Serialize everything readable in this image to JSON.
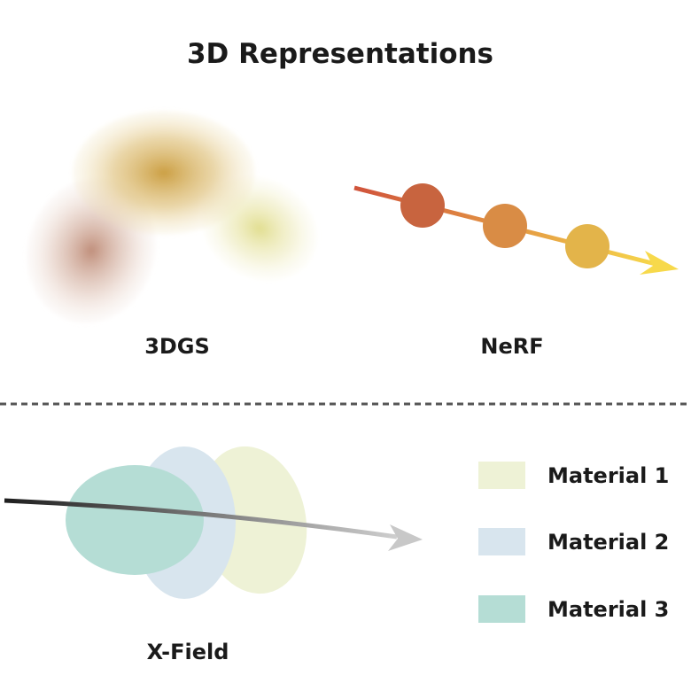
{
  "title": "3D Representations",
  "labels": {
    "gs": "3DGS",
    "nerf": "NeRF",
    "xfield": "X-Field"
  },
  "legend": [
    {
      "label": "Material 1",
      "color": "#eef2d6"
    },
    {
      "label": "Material 2",
      "color": "#d8e5ee"
    },
    {
      "label": "Material 3",
      "color": "#b5ddd5"
    }
  ],
  "colors": {
    "gaussian_gold": "#d2a94a",
    "gaussian_brown": "#c49c86",
    "gaussian_yellow": "#e7e2a4",
    "nerf_ray_start": "#d0533b",
    "nerf_ray_end": "#f7d94b",
    "nerf_sample_1": "#c8643f",
    "nerf_sample_2": "#d98c45",
    "nerf_sample_3": "#e3b44a",
    "xfield_ray_start": "#1e1e1e",
    "xfield_ray_end": "#cfcfcf",
    "divider": "#555555"
  }
}
